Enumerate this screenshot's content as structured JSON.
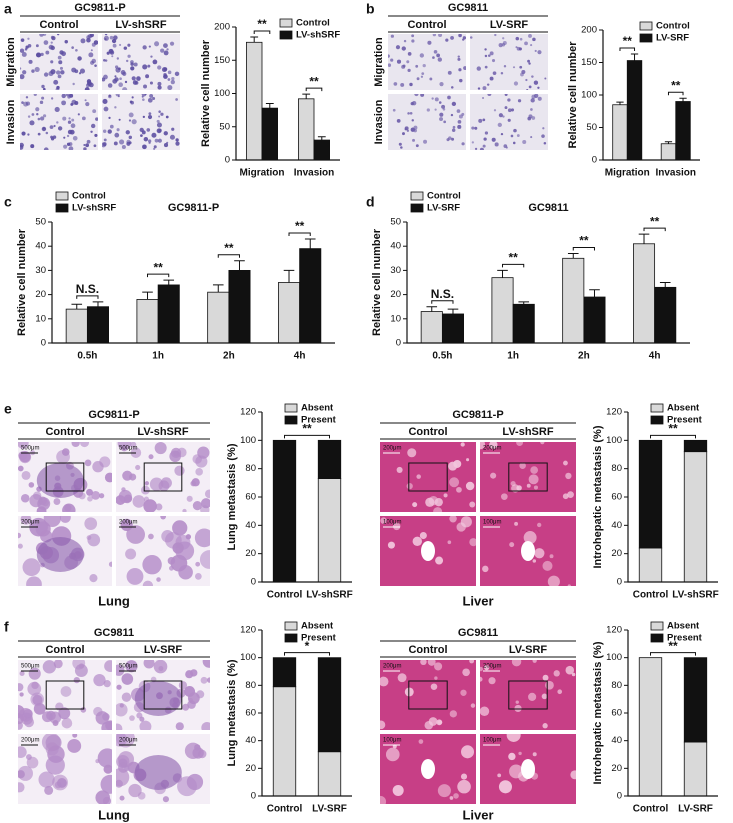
{
  "panels": [
    "a",
    "b",
    "c",
    "d",
    "e",
    "f"
  ],
  "image_blocks": [
    {
      "title": "GC9811-P",
      "columns": [
        "Control",
        "LV-shSRF"
      ],
      "rows": [
        "Migration",
        "Invasion"
      ]
    },
    {
      "title": "GC9811",
      "columns": [
        "Control",
        "LV-SRF"
      ],
      "rows": [
        "Migration",
        "Invasion"
      ]
    },
    {
      "title": "GC9811-P",
      "columns": [
        "Control",
        "LV-shSRF"
      ],
      "scale_bars": [
        "500μm",
        "500μm",
        "200μm",
        "200μm"
      ],
      "caption": "Lung"
    },
    {
      "title": "GC9811-P",
      "columns": [
        "Control",
        "LV-shSRF"
      ],
      "scale_bars": [
        "200μm",
        "200μm",
        "100μm",
        "100μm"
      ],
      "caption": "Liver"
    },
    {
      "title": "GC9811",
      "columns": [
        "Control",
        "LV-SRF"
      ],
      "scale_bars": [
        "500μm",
        "500μm",
        "200μm",
        "200μm"
      ],
      "caption": "Lung"
    },
    {
      "title": "GC9811",
      "columns": [
        "Control",
        "LV-SRF"
      ],
      "scale_bars": [
        "200μm",
        "200μm",
        "100μm",
        "100μm"
      ],
      "caption": "Liver"
    }
  ],
  "chart_data": [
    {
      "type": "bar",
      "y_label": "Relative cell number",
      "categories": [
        "Migration",
        "Invasion"
      ],
      "series": [
        {
          "name": "Control",
          "color": "#d9d9d9",
          "values": [
            177,
            92
          ],
          "errors": [
            8,
            7
          ]
        },
        {
          "name": "LV-shSRF",
          "color": "#111111",
          "values": [
            78,
            30
          ],
          "errors": [
            7,
            5
          ]
        }
      ],
      "annotations": [
        "**",
        "**"
      ],
      "ylim": [
        0,
        200
      ],
      "yticks": [
        0,
        50,
        100,
        150,
        200
      ],
      "legend": "upper right"
    },
    {
      "type": "bar",
      "y_label": "Relative cell number",
      "categories": [
        "Migration",
        "Invasion"
      ],
      "series": [
        {
          "name": "Control",
          "color": "#d9d9d9",
          "values": [
            85,
            25
          ],
          "errors": [
            4,
            3
          ]
        },
        {
          "name": "LV-SRF",
          "color": "#111111",
          "values": [
            153,
            90
          ],
          "errors": [
            10,
            5
          ]
        }
      ],
      "annotations": [
        "**",
        "**"
      ],
      "ylim": [
        0,
        200
      ],
      "yticks": [
        0,
        50,
        100,
        150,
        200
      ],
      "legend": "upper right"
    },
    {
      "type": "bar",
      "title": "GC9811-P",
      "y_label": "Relative cell number",
      "categories": [
        "0.5h",
        "1h",
        "2h",
        "4h"
      ],
      "series": [
        {
          "name": "Control",
          "color": "#d9d9d9",
          "values": [
            14,
            18,
            21,
            25
          ],
          "errors": [
            2,
            3,
            3,
            5
          ]
        },
        {
          "name": "LV-shSRF",
          "color": "#111111",
          "values": [
            15,
            24,
            30,
            39
          ],
          "errors": [
            2,
            2,
            4,
            4
          ]
        }
      ],
      "annotations": [
        "N.S.",
        "**",
        "**",
        "**"
      ],
      "ylim": [
        0,
        50
      ],
      "yticks": [
        0,
        10,
        20,
        30,
        40,
        50
      ],
      "legend": "upper left"
    },
    {
      "type": "bar",
      "title": "GC9811",
      "y_label": "Relative cell number",
      "categories": [
        "0.5h",
        "1h",
        "2h",
        "4h"
      ],
      "series": [
        {
          "name": "Control",
          "color": "#d9d9d9",
          "values": [
            13,
            27,
            35,
            41
          ],
          "errors": [
            2,
            3,
            2,
            4
          ]
        },
        {
          "name": "LV-SRF",
          "color": "#111111",
          "values": [
            12,
            16,
            19,
            23
          ],
          "errors": [
            2,
            1,
            3,
            2
          ]
        }
      ],
      "annotations": [
        "N.S.",
        "**",
        "**",
        "**"
      ],
      "ylim": [
        0,
        50
      ],
      "yticks": [
        0,
        10,
        20,
        30,
        40,
        50
      ],
      "legend": "upper left"
    },
    {
      "type": "stacked_bar",
      "y_label": "Lung metastasis (%)",
      "categories": [
        "Control",
        "LV-shSRF"
      ],
      "series": [
        {
          "name": "Absent",
          "color": "#d9d9d9",
          "values": [
            0,
            73
          ]
        },
        {
          "name": "Present",
          "color": "#111111",
          "values": [
            100,
            27
          ]
        }
      ],
      "annotations": [
        "**"
      ],
      "ylim": [
        0,
        120
      ],
      "yticks": [
        0,
        20,
        40,
        60,
        80,
        100,
        120
      ],
      "legend": "upper center"
    },
    {
      "type": "stacked_bar",
      "y_label": "Introhepatic metastasis (%)",
      "categories": [
        "Control",
        "LV-shSRF"
      ],
      "series": [
        {
          "name": "Absent",
          "color": "#d9d9d9",
          "values": [
            24,
            92
          ]
        },
        {
          "name": "Present",
          "color": "#111111",
          "values": [
            76,
            8
          ]
        }
      ],
      "annotations": [
        "**"
      ],
      "ylim": [
        0,
        120
      ],
      "yticks": [
        0,
        20,
        40,
        60,
        80,
        100,
        120
      ],
      "legend": "upper center"
    },
    {
      "type": "stacked_bar",
      "y_label": "Lung metastasis (%)",
      "categories": [
        "Control",
        "LV-SRF"
      ],
      "series": [
        {
          "name": "Absent",
          "color": "#d9d9d9",
          "values": [
            79,
            32
          ]
        },
        {
          "name": "Present",
          "color": "#111111",
          "values": [
            21,
            68
          ]
        }
      ],
      "annotations": [
        "*"
      ],
      "ylim": [
        0,
        120
      ],
      "yticks": [
        0,
        20,
        40,
        60,
        80,
        100,
        120
      ],
      "legend": "upper center"
    },
    {
      "type": "stacked_bar",
      "y_label": "Introhepatic metastasis (%)",
      "categories": [
        "Control",
        "LV-SRF"
      ],
      "series": [
        {
          "name": "Absent",
          "color": "#d9d9d9",
          "values": [
            100,
            39
          ]
        },
        {
          "name": "Present",
          "color": "#111111",
          "values": [
            0,
            61
          ]
        }
      ],
      "annotations": [
        "**"
      ],
      "ylim": [
        0,
        120
      ],
      "yticks": [
        0,
        20,
        40,
        60,
        80,
        100,
        120
      ],
      "legend": "upper center"
    }
  ]
}
